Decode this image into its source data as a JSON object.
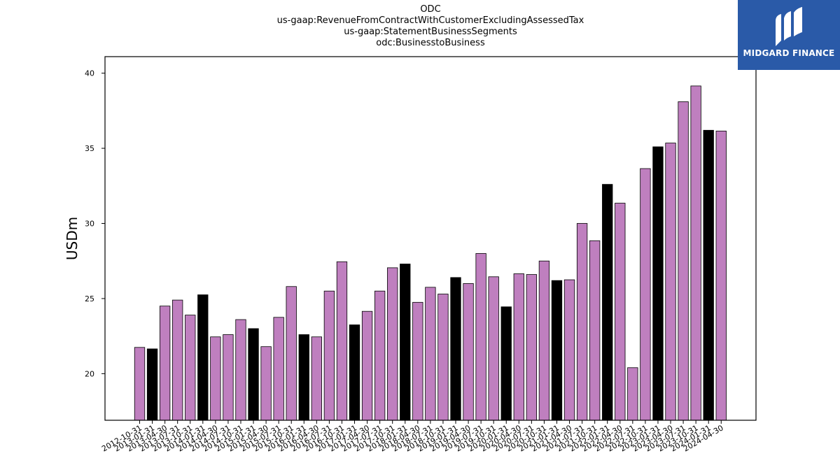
{
  "titles": {
    "line1": "ODC",
    "line2": "us-gaap:RevenueFromContractWithCustomerExcludingAssessedTax",
    "line3": "us-gaap:StatementBusinessSegments",
    "line4": "odc:BusinesstoBusiness"
  },
  "logo": {
    "text": "MIDGARD FINANCE"
  },
  "colors": {
    "quarter": "#bf7fbf",
    "fiscal_year_end": "#000000",
    "edge": "#000000"
  },
  "chart_data": {
    "type": "bar",
    "title": "ODC\nus-gaap:RevenueFromContractWithCustomerExcludingAssessedTax\nus-gaap:StatementBusinessSegments\nodc:BusinesstoBusiness",
    "xlabel": "",
    "ylabel": "USDm",
    "ylim": [
      16.9,
      41.1
    ],
    "yticks": [
      20,
      25,
      30,
      35,
      40
    ],
    "grid": false,
    "legend": "none",
    "categories": [
      "2012-10-31",
      "2013-01-31",
      "2013-04-30",
      "2013-07-31",
      "2013-10-31",
      "2014-01-31",
      "2014-04-30",
      "2014-07-31",
      "2014-10-31",
      "2015-01-31",
      "2015-04-30",
      "2015-07-31",
      "2015-10-31",
      "2016-01-31",
      "2016-04-30",
      "2016-07-31",
      "2016-10-31",
      "2017-01-31",
      "2017-04-30",
      "2017-07-31",
      "2017-10-31",
      "2018-01-31",
      "2018-04-30",
      "2018-07-31",
      "2018-10-31",
      "2019-01-31",
      "2019-04-30",
      "2019-07-31",
      "2019-10-31",
      "2020-01-31",
      "2020-04-30",
      "2020-07-31",
      "2020-10-31",
      "2021-01-31",
      "2021-04-30",
      "2021-07-31",
      "2021-10-31",
      "2022-01-31",
      "2022-04-30",
      "2022-07-31",
      "2022-10-31",
      "2023-01-31",
      "2023-04-30",
      "2023-07-31",
      "2023-10-31",
      "2024-01-31",
      "2024-04-30"
    ],
    "values": [
      21.75,
      21.65,
      24.5,
      24.9,
      23.9,
      25.25,
      22.45,
      22.6,
      23.6,
      23.0,
      21.8,
      23.75,
      25.8,
      22.6,
      22.45,
      25.5,
      27.45,
      23.25,
      24.15,
      25.5,
      27.05,
      27.3,
      24.75,
      25.75,
      25.3,
      26.4,
      26.0,
      28.0,
      26.45,
      24.45,
      26.65,
      26.6,
      27.5,
      26.2,
      26.25,
      30.0,
      28.85,
      32.6,
      31.35,
      20.4,
      33.65,
      35.1,
      35.35,
      38.1,
      39.15,
      36.2,
      36.15
    ],
    "highlight": [
      false,
      true,
      false,
      false,
      false,
      true,
      false,
      false,
      false,
      true,
      false,
      false,
      false,
      true,
      false,
      false,
      false,
      true,
      false,
      false,
      false,
      true,
      false,
      false,
      false,
      true,
      false,
      false,
      false,
      true,
      false,
      false,
      false,
      true,
      false,
      false,
      false,
      true,
      false,
      false,
      false,
      true,
      false,
      false,
      false,
      true,
      false
    ]
  }
}
